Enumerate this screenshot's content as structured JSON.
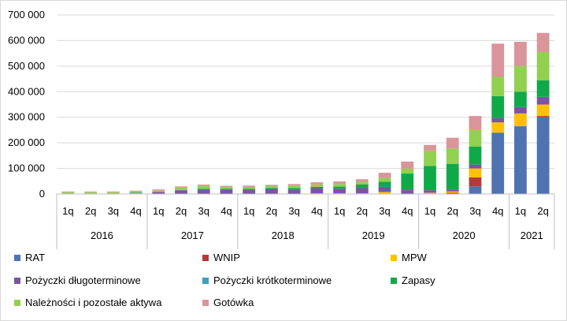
{
  "chart_data": {
    "type": "bar",
    "stacked": true,
    "ylim": [
      0,
      700000
    ],
    "yticks": [
      "0",
      "100 000",
      "200 000",
      "300 000",
      "400 000",
      "500 000",
      "600 000",
      "700 000"
    ],
    "ytick_values": [
      0,
      100000,
      200000,
      300000,
      400000,
      500000,
      600000,
      700000
    ],
    "categories": [
      "1q",
      "2q",
      "3q",
      "4q",
      "1q",
      "2q",
      "3q",
      "4q",
      "1q",
      "2q",
      "3q",
      "4q",
      "1q",
      "2q",
      "3q",
      "4q",
      "1q",
      "2q",
      "3q",
      "4q",
      "1q",
      "2q"
    ],
    "years": [
      {
        "label": "2016",
        "count": 4
      },
      {
        "label": "2017",
        "count": 4
      },
      {
        "label": "2018",
        "count": 4
      },
      {
        "label": "2019",
        "count": 4
      },
      {
        "label": "2020",
        "count": 4
      },
      {
        "label": "2021",
        "count": 2
      }
    ],
    "series": [
      {
        "name": "RAT",
        "color": "#4e73b0",
        "values": [
          0,
          0,
          0,
          0,
          0,
          0,
          0,
          0,
          0,
          0,
          0,
          0,
          0,
          0,
          0,
          0,
          0,
          0,
          30000,
          240000,
          265000,
          300000
        ]
      },
      {
        "name": "WNIP",
        "color": "#b5393b",
        "values": [
          0,
          0,
          0,
          0,
          0,
          0,
          0,
          0,
          0,
          0,
          0,
          0,
          0,
          0,
          0,
          0,
          0,
          5000,
          35000,
          0,
          0,
          5000
        ]
      },
      {
        "name": "MPW",
        "color": "#ffc000",
        "values": [
          0,
          0,
          0,
          3000,
          0,
          0,
          0,
          0,
          0,
          0,
          0,
          3000,
          3000,
          3000,
          8000,
          0,
          5000,
          5000,
          35000,
          40000,
          50000,
          45000
        ]
      },
      {
        "name": "Pożyczki długoterminowe",
        "color": "#7a55a2",
        "values": [
          2000,
          2000,
          2000,
          2000,
          8000,
          15000,
          18000,
          18000,
          18000,
          20000,
          18000,
          20000,
          18000,
          20000,
          20000,
          15000,
          10000,
          8000,
          15000,
          18000,
          25000,
          30000
        ]
      },
      {
        "name": "Pożyczki krótkoterminowe",
        "color": "#3fa0c0",
        "values": [
          0,
          0,
          0,
          0,
          0,
          0,
          0,
          0,
          0,
          0,
          0,
          0,
          0,
          0,
          0,
          0,
          0,
          0,
          0,
          0,
          0,
          0
        ]
      },
      {
        "name": "Zapasy",
        "color": "#10a94a",
        "values": [
          0,
          0,
          0,
          0,
          0,
          0,
          2000,
          2000,
          2000,
          3000,
          5000,
          5000,
          8000,
          15000,
          20000,
          65000,
          95000,
          100000,
          70000,
          85000,
          60000,
          65000
        ]
      },
      {
        "name": "Należności i pozostałe aktywa",
        "color": "#92d050",
        "values": [
          5000,
          5000,
          5000,
          5000,
          5000,
          10000,
          12000,
          8000,
          8000,
          8000,
          10000,
          10000,
          10000,
          10000,
          15000,
          20000,
          60000,
          60000,
          65000,
          75000,
          100000,
          110000
        ]
      },
      {
        "name": "Gotówka",
        "color": "#d9959a",
        "values": [
          3000,
          3000,
          3000,
          3000,
          5000,
          5000,
          5000,
          4000,
          5000,
          5000,
          6000,
          8000,
          10000,
          10000,
          20000,
          27000,
          22000,
          42000,
          55000,
          130000,
          95000,
          75000
        ]
      }
    ]
  }
}
